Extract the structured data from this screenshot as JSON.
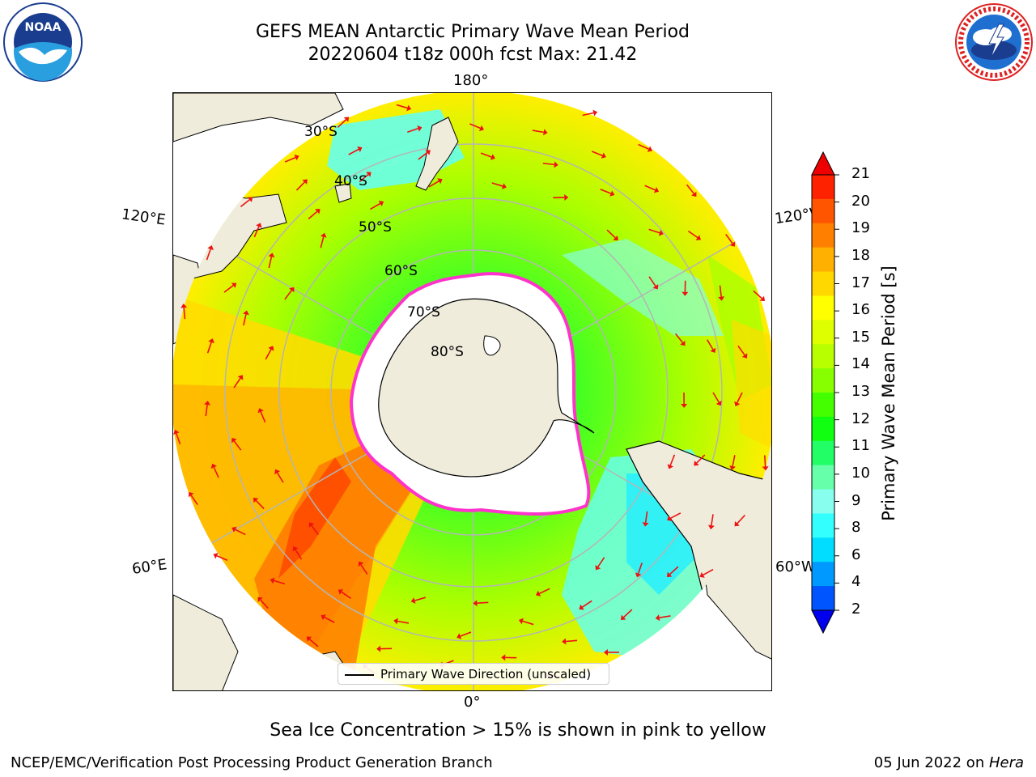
{
  "header": {
    "title_line1": "GEFS MEAN Antarctic Primary Wave Mean Period",
    "title_line2": "20220604 t18z 000h fcst   Max: 21.42"
  },
  "logos": {
    "left": {
      "icon": "noaa-logo",
      "text": "NOAA",
      "ring_text": "NATIONAL OCEANIC AND ATMOSPHERIC ADMINISTRATION · U.S. DEPARTMENT OF COMMERCE"
    },
    "right": {
      "icon": "nws-logo",
      "ring_text": "NATIONAL WEATHER SERVICE"
    }
  },
  "map": {
    "projection": "south-polar-stereographic",
    "longitude_labels": {
      "top": "180°",
      "bottom": "0°",
      "upper_left": "120°E",
      "upper_right": "120°W",
      "lower_left": "60°E",
      "lower_right": "60°W"
    },
    "latitude_labels": [
      "30°S",
      "40°S",
      "50°S",
      "60°S",
      "70°S",
      "80°S"
    ],
    "colors": {
      "land": "#efecdc",
      "sea_ice": "#ffffff",
      "ice_edge": "#ff33cc",
      "arrows": "#ee1111",
      "graticule": "#b5b5b5"
    }
  },
  "colorbar": {
    "label": "Primary Wave Mean Period [s]",
    "ticks": [
      "21",
      "20",
      "19",
      "18",
      "17",
      "16",
      "15",
      "14",
      "13",
      "12",
      "11",
      "10",
      "9",
      "8",
      "6",
      "4",
      "2"
    ],
    "colors": [
      "#ff2200",
      "#ff5500",
      "#ff8000",
      "#ffb000",
      "#ffd800",
      "#ffff00",
      "#ddff00",
      "#b8ff00",
      "#88ff00",
      "#44ff00",
      "#11ff11",
      "#22ff66",
      "#66ffaa",
      "#88ffee",
      "#33ffff",
      "#00ddff",
      "#0099ff",
      "#0055ff"
    ],
    "extend_high_color": "#ee0000",
    "extend_low_color": "#0000ee"
  },
  "legend": {
    "label": "Primary Wave Direction (unscaled)"
  },
  "note": "Sea Ice Concentration > 15% is shown in pink to yellow",
  "footer": {
    "left": "NCEP/EMC/Verification Post Processing Product Generation Branch",
    "right_date": "05 Jun 2022 on ",
    "right_host": "Hera"
  }
}
